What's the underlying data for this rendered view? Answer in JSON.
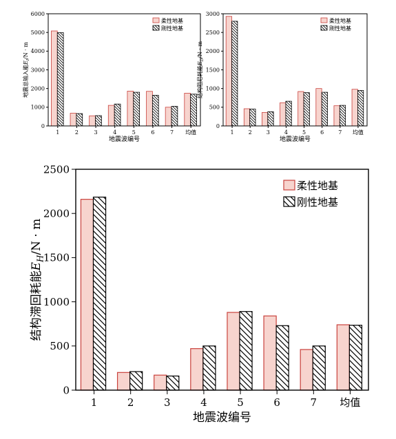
{
  "colors": {
    "flexible_fill": "#f7d4ce",
    "flexible_stroke": "#c9413c",
    "rigid_fill": "#ffffff",
    "rigid_stroke": "#000000"
  },
  "chart_data": [
    {
      "type": "bar",
      "ylabel": "地震总输入能E_I/N·m",
      "ylabel_main": "地震总输入能",
      "ylabel_sym": "E",
      "ylabel_sub": "I",
      "ylabel_unit": "/N · m",
      "xlabel": "地震波编号",
      "categories": [
        "1",
        "2",
        "3",
        "4",
        "5",
        "6",
        "7",
        "均值"
      ],
      "ylim": [
        0,
        6000
      ],
      "yticks": [
        0,
        1000,
        2000,
        3000,
        4000,
        5000,
        6000
      ],
      "legend_position": "top-right",
      "series": [
        {
          "name": "柔性地基",
          "pattern": "solid",
          "values": [
            5080,
            680,
            540,
            1100,
            1860,
            1850,
            1000,
            1750
          ]
        },
        {
          "name": "刚性地基",
          "pattern": "hatched",
          "values": [
            4990,
            660,
            550,
            1170,
            1800,
            1640,
            1050,
            1700
          ]
        }
      ]
    },
    {
      "type": "bar",
      "ylabel": "结构阻尼耗能E_D/N·m",
      "ylabel_main": "结构阻尼耗能",
      "ylabel_sym": "E",
      "ylabel_sub": "D",
      "ylabel_unit": "/N · m",
      "xlabel": "地震波编号",
      "categories": [
        "1",
        "2",
        "3",
        "4",
        "5",
        "6",
        "7",
        "均值"
      ],
      "ylim": [
        0,
        3000
      ],
      "yticks": [
        0,
        500,
        1000,
        1500,
        2000,
        2500,
        3000
      ],
      "legend_position": "top-right",
      "series": [
        {
          "name": "柔性地基",
          "pattern": "solid",
          "values": [
            2930,
            460,
            360,
            620,
            920,
            1000,
            540,
            980
          ]
        },
        {
          "name": "刚性地基",
          "pattern": "hatched",
          "values": [
            2800,
            450,
            380,
            660,
            890,
            900,
            550,
            950
          ]
        }
      ]
    },
    {
      "type": "bar",
      "ylabel": "结构滞回耗能E_H/N·m",
      "ylabel_main": "结构滞回耗能",
      "ylabel_sym": "E",
      "ylabel_sub": "H",
      "ylabel_unit": "/N · m",
      "xlabel": "地震波编号",
      "categories": [
        "1",
        "2",
        "3",
        "4",
        "5",
        "6",
        "7",
        "均值"
      ],
      "ylim": [
        0,
        2500
      ],
      "yticks": [
        0,
        500,
        1000,
        1500,
        2000,
        2500
      ],
      "legend_position": "top-right",
      "series": [
        {
          "name": "柔性地基",
          "pattern": "solid",
          "values": [
            2160,
            200,
            170,
            470,
            880,
            840,
            460,
            740
          ]
        },
        {
          "name": "刚性地基",
          "pattern": "hatched",
          "values": [
            2185,
            210,
            160,
            500,
            890,
            730,
            500,
            735
          ]
        }
      ]
    }
  ]
}
